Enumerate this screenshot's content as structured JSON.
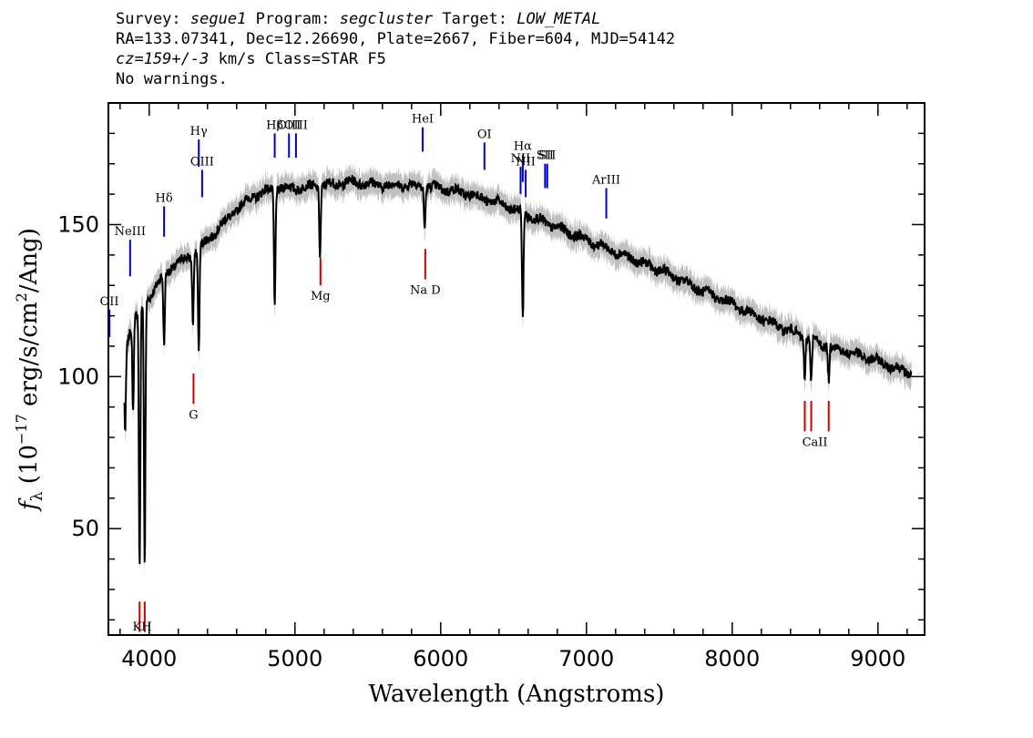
{
  "header": {
    "survey_label": "Survey:",
    "survey": "segue1",
    "program_label": "Program:",
    "program": "segcluster",
    "target_label": "Target:",
    "target": "LOW_METAL",
    "line2": "RA=133.07341, Dec=12.26690, Plate=2667, Fiber=604, MJD=54142",
    "cz": "cz=159+/-3",
    "cz_unit": "km/s",
    "class": "Class=STAR F5",
    "warnings": "No warnings."
  },
  "chart_data": {
    "type": "line",
    "xlabel": "Wavelength (Angstroms)",
    "ylabel": "f_λ (10^-17 erg/s/cm^2/Ang)",
    "xlim": [
      3720,
      9320
    ],
    "ylim": [
      15,
      190
    ],
    "x_ticks": [
      4000,
      5000,
      6000,
      7000,
      8000,
      9000
    ],
    "y_ticks": [
      50,
      100,
      150
    ],
    "colors": {
      "flux": "#000000",
      "error_band": "#c0c0c0",
      "emission": "#0000cc",
      "absorption": "#cc0000"
    },
    "continuum": [
      [
        3830,
        107
      ],
      [
        3880,
        118
      ],
      [
        3950,
        123
      ],
      [
        4050,
        130
      ],
      [
        4150,
        136
      ],
      [
        4300,
        140
      ],
      [
        4400,
        145
      ],
      [
        4500,
        150
      ],
      [
        4600,
        155
      ],
      [
        4700,
        159
      ],
      [
        4800,
        161
      ],
      [
        4900,
        162
      ],
      [
        5000,
        162
      ],
      [
        5200,
        163
      ],
      [
        5400,
        164
      ],
      [
        5600,
        163
      ],
      [
        5800,
        163
      ],
      [
        6000,
        162
      ],
      [
        6200,
        160
      ],
      [
        6400,
        157
      ],
      [
        6600,
        153
      ],
      [
        6800,
        149
      ],
      [
        7000,
        145
      ],
      [
        7200,
        141
      ],
      [
        7400,
        137
      ],
      [
        7600,
        133
      ],
      [
        7800,
        128
      ],
      [
        8000,
        124
      ],
      [
        8200,
        119
      ],
      [
        8400,
        115
      ],
      [
        8600,
        111
      ],
      [
        8800,
        108
      ],
      [
        9000,
        105
      ],
      [
        9230,
        101
      ]
    ],
    "absorption_features": [
      {
        "x": 3934,
        "y": 35
      },
      {
        "x": 3969,
        "y": 38
      },
      {
        "x": 3889,
        "y": 88
      },
      {
        "x": 3835,
        "y": 82
      },
      {
        "x": 4102,
        "y": 110
      },
      {
        "x": 4300,
        "y": 118
      },
      {
        "x": 4340,
        "y": 108
      },
      {
        "x": 4861,
        "y": 123
      },
      {
        "x": 5172,
        "y": 140
      },
      {
        "x": 5890,
        "y": 149
      },
      {
        "x": 6563,
        "y": 118
      },
      {
        "x": 8498,
        "y": 99
      },
      {
        "x": 8542,
        "y": 98
      },
      {
        "x": 8662,
        "y": 99
      }
    ],
    "emission_lines": [
      {
        "label": "OII",
        "x": 3727,
        "y_top": 122,
        "y_bottom": 113
      },
      {
        "label": "NeIII",
        "x": 3869,
        "y_top": 145,
        "y_bottom": 133
      },
      {
        "label": "Hδ",
        "x": 4102,
        "y_top": 156,
        "y_bottom": 146
      },
      {
        "label": "Hγ",
        "x": 4340,
        "y_top": 178,
        "y_bottom": 169
      },
      {
        "label": "OIII",
        "x": 4363,
        "y_top": 168,
        "y_bottom": 159
      },
      {
        "label": "Hβ",
        "x": 4861,
        "y_top": 180,
        "y_bottom": 172
      },
      {
        "label": "OIII",
        "x": 4959,
        "y_top": 180,
        "y_bottom": 172
      },
      {
        "label": "OIII",
        "x": 5007,
        "y_top": 180,
        "y_bottom": 172
      },
      {
        "label": "HeI",
        "x": 5876,
        "y_top": 182,
        "y_bottom": 174
      },
      {
        "label": "OI",
        "x": 6300,
        "y_top": 177,
        "y_bottom": 168
      },
      {
        "label": "NII",
        "x": 6548,
        "y_top": 169,
        "y_bottom": 160
      },
      {
        "label": "Hα",
        "x": 6563,
        "y_top": 173,
        "y_bottom": 164
      },
      {
        "label": "NII",
        "x": 6583,
        "y_top": 168,
        "y_bottom": 159
      },
      {
        "label": "SII",
        "x": 6716,
        "y_top": 170,
        "y_bottom": 162
      },
      {
        "label": "SII",
        "x": 6731,
        "y_top": 170,
        "y_bottom": 162
      },
      {
        "label": "ArIII",
        "x": 7136,
        "y_top": 162,
        "y_bottom": 152
      }
    ],
    "absorption_lines": [
      {
        "label": "K",
        "x": 3934,
        "y_top": 26,
        "y_bottom": 16
      },
      {
        "label": "H",
        "x": 3969,
        "y_top": 26,
        "y_bottom": 16
      },
      {
        "label": "G",
        "x": 4304,
        "y_top": 101,
        "y_bottom": 91
      },
      {
        "label": "Mg",
        "x": 5175,
        "y_top": 139,
        "y_bottom": 130
      },
      {
        "label": "Na D",
        "x": 5894,
        "y_top": 142,
        "y_bottom": 132
      },
      {
        "label": "CaII",
        "x": 8498,
        "y_top": 92,
        "y_bottom": 82
      },
      {
        "label": "CaII",
        "x": 8542,
        "y_top": 92,
        "y_bottom": 82
      },
      {
        "label": "CaII",
        "x": 8662,
        "y_top": 92,
        "y_bottom": 82
      }
    ]
  }
}
